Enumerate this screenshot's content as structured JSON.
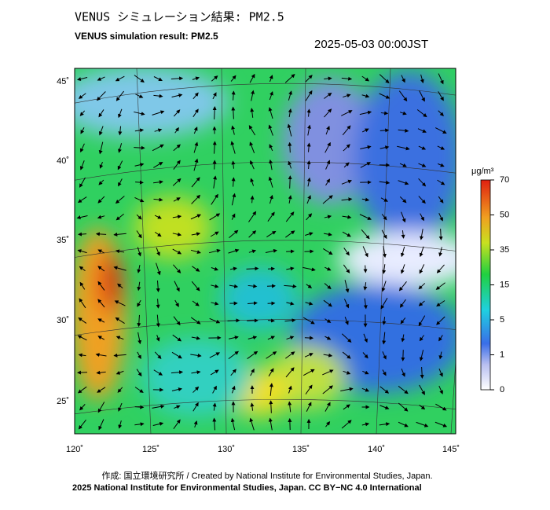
{
  "header": {
    "title": "VENUS シミュレーション結果: PM2.5",
    "subtitle": "VENUS simulation result: PM2.5",
    "datetime": "2025-05-03 00:00JST"
  },
  "map": {
    "lat_labels": [
      "45˚",
      "40˚",
      "35˚",
      "30˚",
      "25˚"
    ],
    "lon_labels": [
      "120˚",
      "125˚",
      "130˚",
      "135˚",
      "140˚",
      "145˚"
    ]
  },
  "colorbar": {
    "unit": "μg/m³",
    "ticks": [
      70,
      50,
      35,
      15,
      5,
      1,
      0
    ]
  },
  "footer": {
    "credit": "作成: 国立環境研究所 / Created by National Institute for Environmental Studies, Japan.",
    "copyright": "2025 National Institute for Environmental Studies, Japan. CC BY−NC 4.0 International"
  }
}
